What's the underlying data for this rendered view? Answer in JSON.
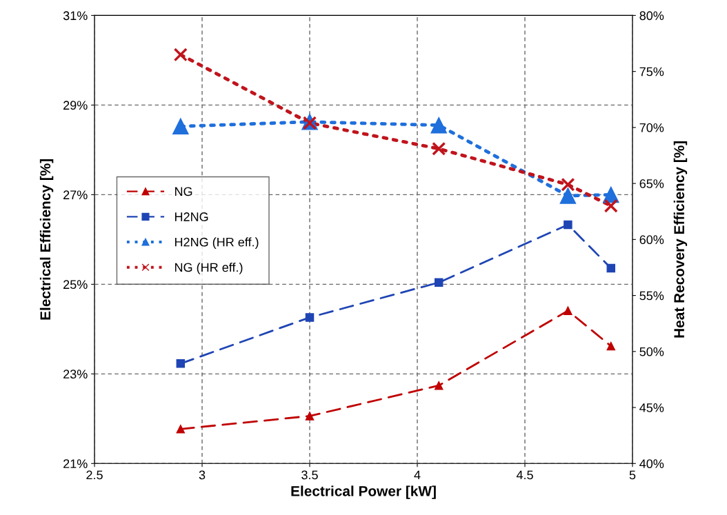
{
  "chart_data": {
    "type": "line",
    "xlabel": "Electrical Power [kW]",
    "ylabel": "Electrical Efficiency [%]",
    "y2label": "Heat Recovery Efficiency [%]",
    "x": [
      2.9,
      3.5,
      4.1,
      4.7,
      4.9
    ],
    "xlim": [
      2.5,
      5
    ],
    "xticks": [
      2.5,
      3,
      3.5,
      4,
      4.5,
      5
    ],
    "ylim": [
      21,
      31
    ],
    "yticks": [
      {
        "value": 21,
        "label": "21%"
      },
      {
        "value": 23,
        "label": "23%"
      },
      {
        "value": 25,
        "label": "25%"
      },
      {
        "value": 27,
        "label": "27%"
      },
      {
        "value": 29,
        "label": "29%"
      },
      {
        "value": 31,
        "label": "31%"
      }
    ],
    "y2lim": [
      40,
      80
    ],
    "y2ticks": [
      {
        "value": 40,
        "label": "40%"
      },
      {
        "value": 45,
        "label": "45%"
      },
      {
        "value": 50,
        "label": "50%"
      },
      {
        "value": 55,
        "label": "55%"
      },
      {
        "value": 60,
        "label": "60%"
      },
      {
        "value": 65,
        "label": "65%"
      },
      {
        "value": 70,
        "label": "70%"
      },
      {
        "value": 75,
        "label": "75%"
      },
      {
        "value": 80,
        "label": "80%"
      }
    ],
    "grid": true,
    "legend": "left",
    "series": [
      {
        "name": "NG",
        "color": "#c00000",
        "marker": "triangle",
        "line_style": "dashed",
        "values": [
          21.77,
          22.06,
          22.74,
          24.41,
          23.62
        ]
      },
      {
        "name": "H2NG",
        "color": "#1f45b4",
        "marker": "square",
        "line_style": "dashed",
        "values": [
          23.23,
          24.26,
          25.04,
          26.33,
          25.36
        ]
      },
      {
        "name": "H2NG (HR eff.)",
        "color": "#1f6fdc",
        "marker": "triangle",
        "line_style": "dotted",
        "axis": "y2",
        "values": [
          70.1,
          70.5,
          70.2,
          63.9,
          64.0
        ]
      },
      {
        "name": "NG (HR eff.)",
        "color": "#c0141c",
        "marker": "cross",
        "line_style": "dotted",
        "axis": "y2",
        "values": [
          76.5,
          70.4,
          68.1,
          64.9,
          63.0
        ]
      }
    ]
  }
}
